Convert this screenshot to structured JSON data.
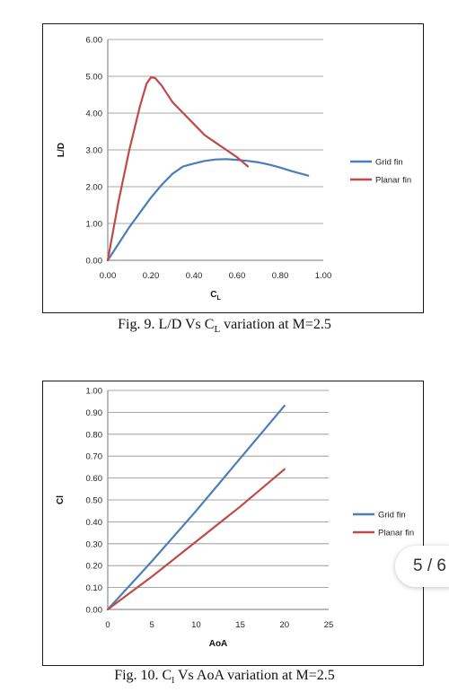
{
  "chart_data": [
    {
      "type": "line",
      "xlabel": "C",
      "xlabel_sub": "L",
      "ylabel": "L/D",
      "xlim": [
        0,
        1.0
      ],
      "ylim": [
        0,
        6.0
      ],
      "x_ticks": [
        "0.00",
        "0.20",
        "0.40",
        "0.60",
        "0.80",
        "1.00"
      ],
      "y_ticks": [
        "0.00",
        "1.00",
        "2.00",
        "3.00",
        "4.00",
        "5.00",
        "6.00"
      ],
      "grid": "horizontal",
      "legend_position": "right",
      "series": [
        {
          "name": "Grid fin",
          "color": "#4a7ebb",
          "points": [
            [
              0,
              0
            ],
            [
              0.05,
              0.45
            ],
            [
              0.1,
              0.9
            ],
            [
              0.15,
              1.3
            ],
            [
              0.2,
              1.7
            ],
            [
              0.25,
              2.05
            ],
            [
              0.3,
              2.35
            ],
            [
              0.35,
              2.55
            ],
            [
              0.4,
              2.63
            ],
            [
              0.45,
              2.7
            ],
            [
              0.5,
              2.74
            ],
            [
              0.55,
              2.75
            ],
            [
              0.6,
              2.73
            ],
            [
              0.65,
              2.7
            ],
            [
              0.7,
              2.66
            ],
            [
              0.75,
              2.6
            ],
            [
              0.8,
              2.52
            ],
            [
              0.85,
              2.43
            ],
            [
              0.93,
              2.3
            ]
          ]
        },
        {
          "name": "Planar fin",
          "color": "#be4b48",
          "points": [
            [
              0,
              0
            ],
            [
              0.05,
              1.6
            ],
            [
              0.1,
              3.0
            ],
            [
              0.15,
              4.2
            ],
            [
              0.18,
              4.8
            ],
            [
              0.2,
              4.97
            ],
            [
              0.22,
              4.95
            ],
            [
              0.25,
              4.75
            ],
            [
              0.3,
              4.3
            ],
            [
              0.35,
              4.0
            ],
            [
              0.4,
              3.7
            ],
            [
              0.45,
              3.4
            ],
            [
              0.5,
              3.2
            ],
            [
              0.55,
              3.0
            ],
            [
              0.6,
              2.8
            ],
            [
              0.65,
              2.55
            ]
          ]
        }
      ]
    },
    {
      "type": "line",
      "xlabel": "AoA",
      "ylabel": "Cl",
      "xlim": [
        0,
        25
      ],
      "ylim": [
        0,
        1.0
      ],
      "x_ticks": [
        "0",
        "5",
        "10",
        "15",
        "20",
        "25"
      ],
      "y_ticks": [
        "0.00",
        "0.10",
        "0.20",
        "0.30",
        "0.40",
        "0.50",
        "0.60",
        "0.70",
        "0.80",
        "0.90",
        "1.00"
      ],
      "grid": "horizontal",
      "legend_position": "right",
      "series": [
        {
          "name": "Grid fin",
          "color": "#4a7ebb",
          "points": [
            [
              0,
              0
            ],
            [
              5,
              0.22
            ],
            [
              10,
              0.45
            ],
            [
              15,
              0.69
            ],
            [
              20,
              0.93
            ]
          ]
        },
        {
          "name": "Planar fin",
          "color": "#be4b48",
          "points": [
            [
              0,
              0
            ],
            [
              5,
              0.15
            ],
            [
              10,
              0.31
            ],
            [
              15,
              0.47
            ],
            [
              20,
              0.64
            ]
          ]
        }
      ]
    }
  ],
  "captions": {
    "fig9": {
      "prefix": "Fig. 9. L/D Vs C",
      "sub": "L",
      "suffix": " variation at M=2.5"
    },
    "fig10": {
      "prefix": "Fig. 10. C",
      "sub": "l",
      "suffix": " Vs AoA variation at M=2.5"
    }
  },
  "page_indicator": "5 / 6"
}
